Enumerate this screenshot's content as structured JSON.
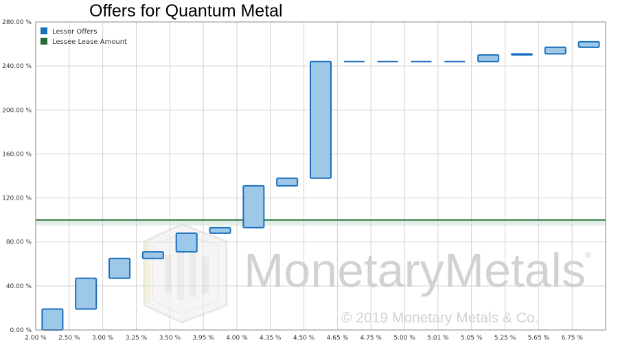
{
  "chart_data": {
    "type": "waterfall",
    "title": "Offers for Quantum Metal",
    "categories": [
      "2.00 %",
      "2.50 %",
      "3.00 %",
      "3.25 %",
      "3.50 %",
      "3.95 %",
      "4.00 %",
      "4.35 %",
      "4.50 %",
      "4.65 %",
      "4.75 %",
      "5.00 %",
      "5.01 %",
      "5.05 %",
      "5.25 %",
      "5.65 %",
      "6.75 %"
    ],
    "y_tick_labels": [
      "0.00 %",
      "40.00 %",
      "80.00 %",
      "120.00 %",
      "160.00 %",
      "200.00 %",
      "240.00 %",
      "280.00 %"
    ],
    "ylim": [
      0,
      280
    ],
    "grid": true,
    "legend_position": "top-left",
    "series": [
      {
        "name": "Lessor Offers",
        "color": "#1a6fbf",
        "fill": "#9ec8e8",
        "low": [
          0,
          19,
          47,
          65,
          71,
          88,
          93,
          131,
          138,
          244,
          244,
          244,
          244,
          244,
          250,
          251,
          257
        ],
        "high": [
          19,
          47,
          65,
          71,
          88,
          93,
          131,
          138,
          244,
          244,
          244,
          244,
          244,
          250,
          251,
          257,
          262
        ]
      },
      {
        "name": "Lessee Lease Amount",
        "color": "#1f6b34",
        "value": 100
      }
    ],
    "watermark": {
      "logo_text": "MonetaryMetals",
      "registered_mark": "®",
      "copyright": "© 2019 Monetary Metals & Co.",
      "color": "#c8c8c8"
    }
  }
}
